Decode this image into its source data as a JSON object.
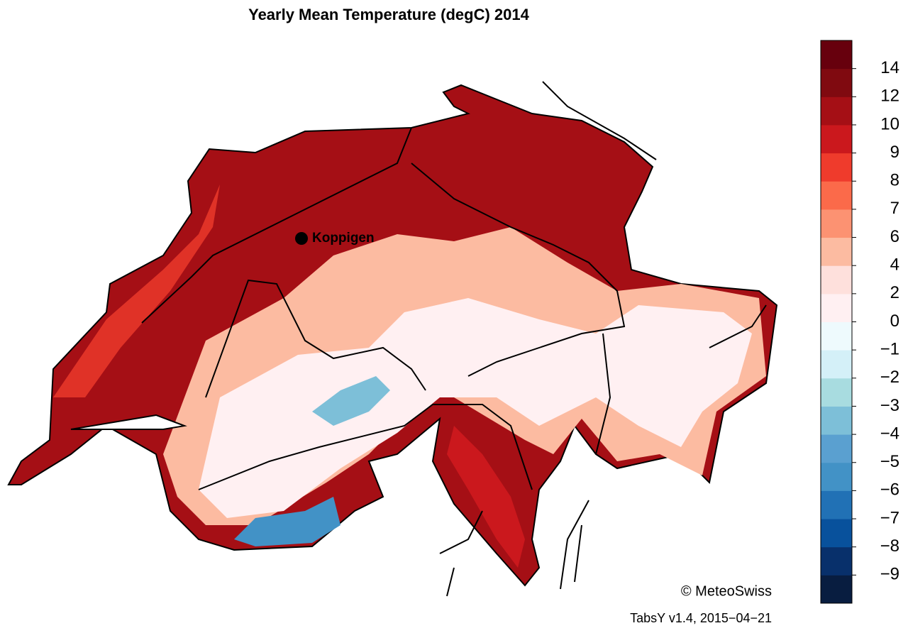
{
  "map": {
    "title": "Yearly Mean Temperature (degC) 2014",
    "markers": [
      {
        "label": "Koppigen"
      }
    ],
    "credit": "© MeteoSwiss",
    "version": "TabsY v1.4, 2015−04−21",
    "colorbar": {
      "colors": [
        "#081d40",
        "#08306b",
        "#08519c",
        "#2171b5",
        "#4292c6",
        "#5aa0d0",
        "#7dbfd8",
        "#a8dce0",
        "#d4f0f8",
        "#eefafd",
        "#fff0f2",
        "#fee0dc",
        "#fcbba1",
        "#fc9272",
        "#fb6a4a",
        "#ef3b2c",
        "#cb181d",
        "#a50f15",
        "#800a10",
        "#67000d"
      ],
      "ticks": [
        {
          "value": -9,
          "label": "−9"
        },
        {
          "value": -8,
          "label": "−8"
        },
        {
          "value": -7,
          "label": "−7"
        },
        {
          "value": -6,
          "label": "−6"
        },
        {
          "value": -5,
          "label": "−5"
        },
        {
          "value": -4,
          "label": "−4"
        },
        {
          "value": -3,
          "label": "−3"
        },
        {
          "value": -2,
          "label": "−2"
        },
        {
          "value": -1,
          "label": "−1"
        },
        0,
        2,
        4,
        6,
        7,
        8,
        9,
        10,
        12,
        14
      ]
    }
  }
}
